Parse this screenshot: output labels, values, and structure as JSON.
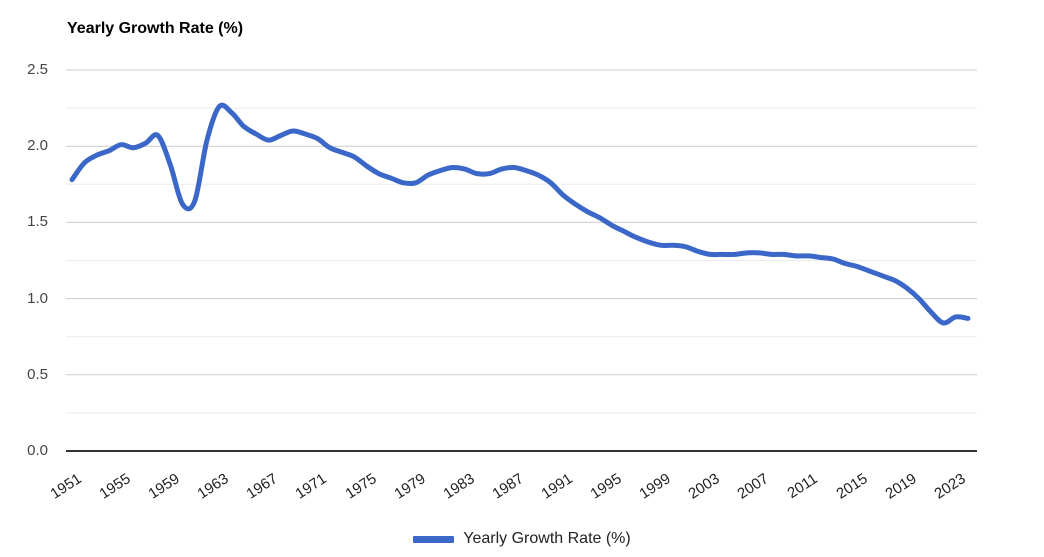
{
  "chart_data": {
    "type": "line",
    "title": "Yearly Growth Rate (%)",
    "xlabel": "",
    "ylabel": "",
    "ylim": [
      0.0,
      2.5
    ],
    "xlim": [
      1951,
      2024
    ],
    "yticks": [
      0.0,
      0.5,
      1.0,
      1.5,
      2.0,
      2.5
    ],
    "ytick_minor_step": 0.25,
    "xticks": [
      1951,
      1955,
      1959,
      1963,
      1967,
      1971,
      1975,
      1979,
      1983,
      1987,
      1991,
      1995,
      1999,
      2003,
      2007,
      2011,
      2015,
      2019,
      2023
    ],
    "grid": "horizontal major + minor, light gray",
    "legend_position": "bottom-center",
    "x": [
      1951,
      1952,
      1953,
      1954,
      1955,
      1956,
      1957,
      1958,
      1959,
      1960,
      1961,
      1962,
      1963,
      1964,
      1965,
      1966,
      1967,
      1968,
      1969,
      1970,
      1971,
      1972,
      1973,
      1974,
      1975,
      1976,
      1977,
      1978,
      1979,
      1980,
      1981,
      1982,
      1983,
      1984,
      1985,
      1986,
      1987,
      1988,
      1989,
      1990,
      1991,
      1992,
      1993,
      1994,
      1995,
      1996,
      1997,
      1998,
      1999,
      2000,
      2001,
      2002,
      2003,
      2004,
      2005,
      2006,
      2007,
      2008,
      2009,
      2010,
      2011,
      2012,
      2013,
      2014,
      2015,
      2016,
      2017,
      2018,
      2019,
      2020,
      2021,
      2022,
      2023,
      2024
    ],
    "series": [
      {
        "name": "Yearly Growth Rate (%)",
        "color": "#3B68C8",
        "values": [
          1.78,
          1.89,
          1.94,
          1.97,
          2.01,
          1.99,
          2.02,
          2.07,
          1.88,
          1.62,
          1.64,
          2.04,
          2.26,
          2.22,
          2.13,
          2.08,
          2.04,
          2.07,
          2.1,
          2.08,
          2.05,
          1.99,
          1.96,
          1.93,
          1.87,
          1.82,
          1.79,
          1.76,
          1.76,
          1.81,
          1.84,
          1.86,
          1.85,
          1.82,
          1.82,
          1.85,
          1.86,
          1.84,
          1.81,
          1.76,
          1.68,
          1.62,
          1.57,
          1.53,
          1.48,
          1.44,
          1.4,
          1.37,
          1.35,
          1.35,
          1.34,
          1.31,
          1.29,
          1.29,
          1.29,
          1.3,
          1.3,
          1.29,
          1.29,
          1.28,
          1.28,
          1.27,
          1.26,
          1.23,
          1.21,
          1.18,
          1.15,
          1.12,
          1.07,
          1.0,
          0.91,
          0.84,
          0.88,
          0.87
        ]
      }
    ]
  },
  "colors": {
    "series_blue": "#3B68C8",
    "grid_major": "#cccccc",
    "grid_minor": "#ebebeb",
    "axis_baseline": "#333333",
    "ytick_text": "#444444",
    "xtick_text": "#222222",
    "title_text": "#000000",
    "background": "#ffffff"
  },
  "legend": {
    "label": "Yearly Growth Rate (%)"
  }
}
